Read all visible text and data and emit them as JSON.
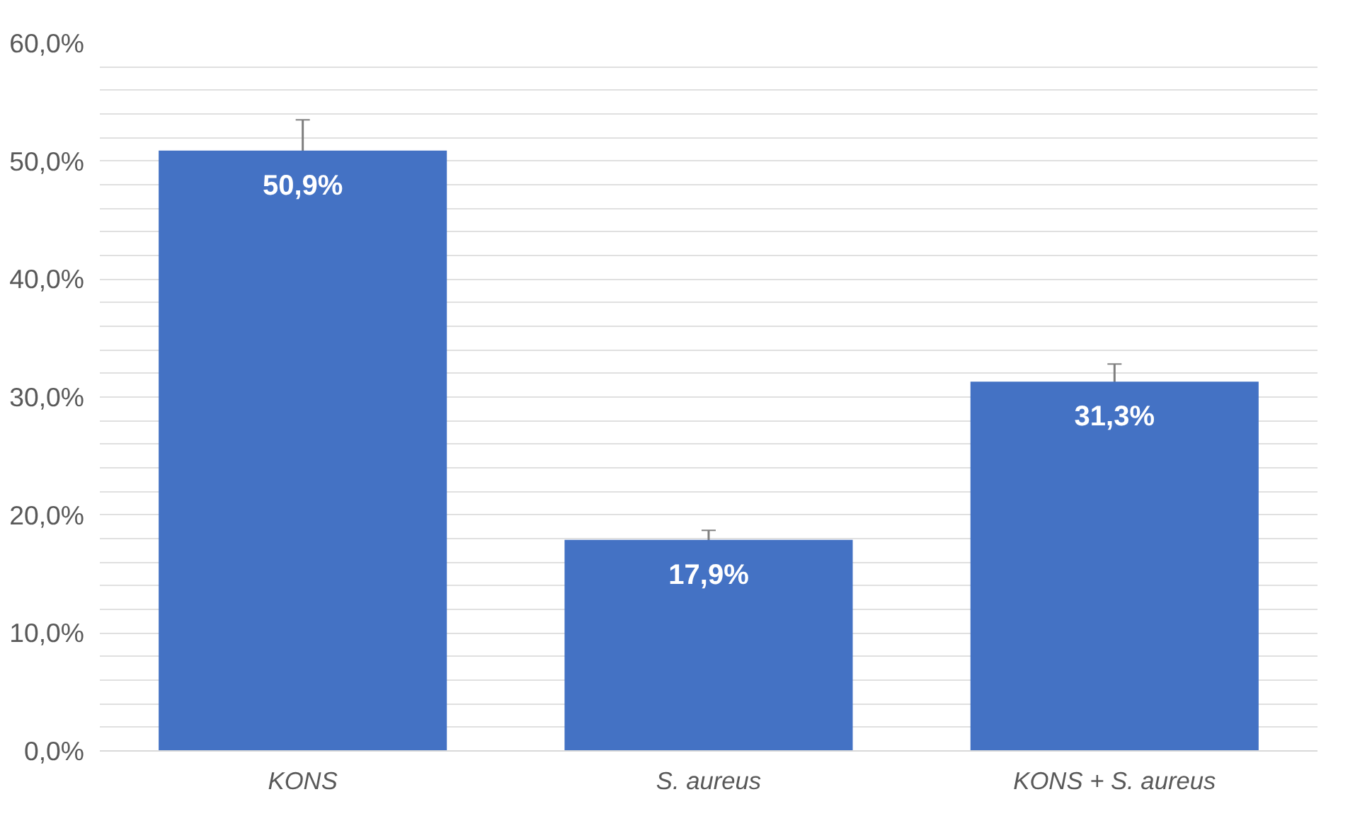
{
  "chart_data": {
    "type": "bar",
    "categories": [
      "KONS",
      "S. aureus",
      "KONS + S. aureus"
    ],
    "values": [
      50.9,
      17.9,
      31.3
    ],
    "errors": [
      2.6,
      0.8,
      1.5
    ],
    "color": "#4472c4",
    "value_labels": [
      "50,9%",
      "17,9%",
      "31,3%"
    ],
    "ylim": [
      0,
      60
    ],
    "yticks": [
      {
        "value": 0,
        "label": "0,0%"
      },
      {
        "value": 2,
        "label": null
      },
      {
        "value": 4,
        "label": null
      },
      {
        "value": 6,
        "label": null
      },
      {
        "value": 8,
        "label": null
      },
      {
        "value": 10,
        "label": "10,0%"
      },
      {
        "value": 12,
        "label": null
      },
      {
        "value": 14,
        "label": null
      },
      {
        "value": 16,
        "label": null
      },
      {
        "value": 18,
        "label": null
      },
      {
        "value": 20,
        "label": "20,0%"
      },
      {
        "value": 22,
        "label": null
      },
      {
        "value": 24,
        "label": null
      },
      {
        "value": 26,
        "label": null
      },
      {
        "value": 28,
        "label": null
      },
      {
        "value": 30,
        "label": "30,0%"
      },
      {
        "value": 32,
        "label": null
      },
      {
        "value": 34,
        "label": null
      },
      {
        "value": 36,
        "label": null
      },
      {
        "value": 38,
        "label": null
      },
      {
        "value": 40,
        "label": "40,0%"
      },
      {
        "value": 42,
        "label": null
      },
      {
        "value": 44,
        "label": null
      },
      {
        "value": 46,
        "label": null
      },
      {
        "value": 48,
        "label": null
      },
      {
        "value": 50,
        "label": "50,0%"
      },
      {
        "value": 52,
        "label": null
      },
      {
        "value": 54,
        "label": null
      },
      {
        "value": 56,
        "label": null
      },
      {
        "value": 58,
        "label": null
      },
      {
        "value": 60,
        "label": "60,0%"
      }
    ],
    "grid": "y"
  }
}
